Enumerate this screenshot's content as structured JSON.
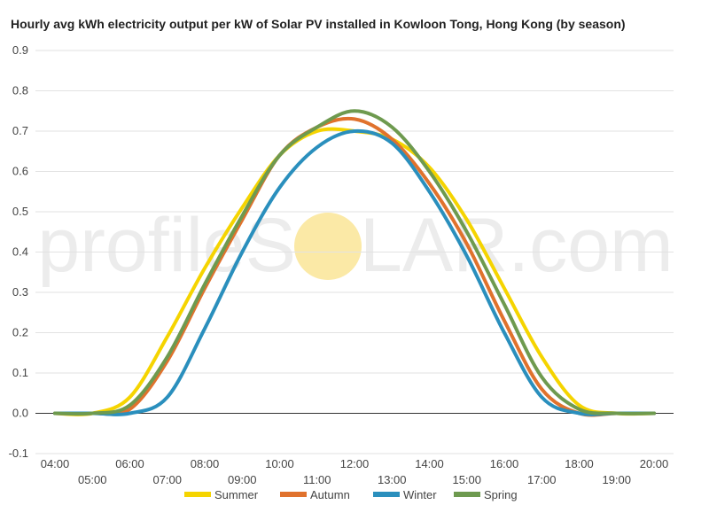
{
  "chart_data": {
    "type": "line",
    "title": "Hourly avg kWh electricity output per kW of Solar PV installed in Kowloon Tong, Hong Kong (by season)",
    "xlabel": "",
    "ylabel": "",
    "x": [
      "04:00",
      "05:00",
      "06:00",
      "07:00",
      "08:00",
      "09:00",
      "10:00",
      "11:00",
      "12:00",
      "13:00",
      "14:00",
      "15:00",
      "16:00",
      "17:00",
      "18:00",
      "19:00",
      "20:00"
    ],
    "ylim": [
      -0.1,
      0.9
    ],
    "yticks": [
      "-0.1",
      "0.0",
      "0.1",
      "0.2",
      "0.3",
      "0.4",
      "0.5",
      "0.6",
      "0.7",
      "0.8",
      "0.9"
    ],
    "grid": true,
    "legend_position": "bottom",
    "series": [
      {
        "name": "Summer",
        "color": "#f5d400",
        "values": [
          0.0,
          0.0,
          0.04,
          0.19,
          0.36,
          0.51,
          0.64,
          0.7,
          0.7,
          0.68,
          0.61,
          0.48,
          0.31,
          0.14,
          0.02,
          0.0,
          0.0
        ]
      },
      {
        "name": "Autumn",
        "color": "#e0722d",
        "values": [
          0.0,
          0.0,
          0.01,
          0.13,
          0.31,
          0.48,
          0.64,
          0.71,
          0.73,
          0.68,
          0.57,
          0.42,
          0.23,
          0.06,
          0.0,
          0.0,
          0.0
        ]
      },
      {
        "name": "Winter",
        "color": "#2a8fbd",
        "values": [
          0.0,
          0.0,
          0.0,
          0.04,
          0.21,
          0.4,
          0.56,
          0.66,
          0.7,
          0.67,
          0.55,
          0.39,
          0.2,
          0.04,
          0.0,
          0.0,
          0.0
        ]
      },
      {
        "name": "Spring",
        "color": "#6e9a4f",
        "values": [
          0.0,
          0.0,
          0.02,
          0.14,
          0.32,
          0.49,
          0.64,
          0.71,
          0.75,
          0.71,
          0.6,
          0.45,
          0.27,
          0.09,
          0.01,
          0.0,
          0.0
        ]
      }
    ]
  },
  "watermark": {
    "left": "profileS",
    "right": "LAR.com",
    "sun_color": "#fbe9a6"
  }
}
